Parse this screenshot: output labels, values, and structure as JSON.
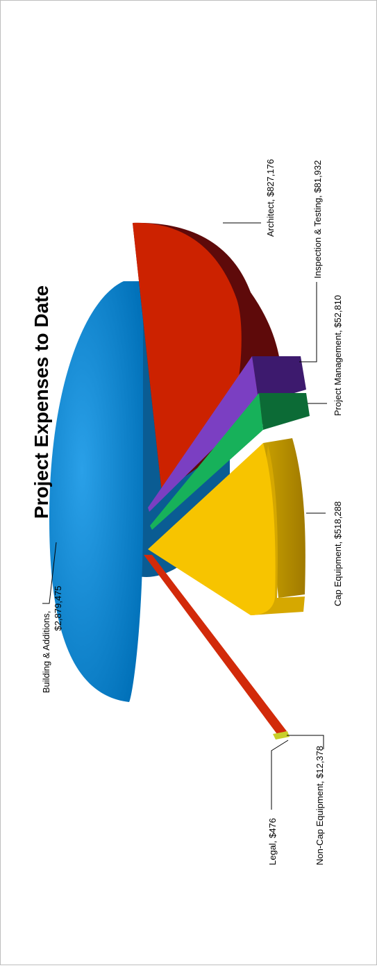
{
  "chart_data": {
    "type": "pie",
    "title": "Project Expenses to Date",
    "labels": [
      "Building & Additions, $2,879,475",
      "Architect, $827,176",
      "Inspection & Testing, $81,932",
      "Project Management, $52,810",
      "Cap Equipment, $518,288",
      "Non-Cap Equipment, $12,378",
      "Legal, $476"
    ],
    "label_lines": [
      [
        "Building & Additions,",
        "$2,879,475"
      ],
      [
        "Architect, $827,176"
      ],
      [
        "Inspection & Testing, $81,932"
      ],
      [
        "Project Management, $52,810"
      ],
      [
        "Cap Equipment, $518,288"
      ],
      [
        "Non-Cap Equipment, $12,378"
      ],
      [
        "Legal, $476"
      ]
    ],
    "values": [
      2879475,
      827176,
      81932,
      52810,
      518288,
      12378,
      476
    ],
    "colors": [
      "#0a84d0",
      "#cc2200",
      "#7b3fc2",
      "#17b15a",
      "#f7c400",
      "#d22a0a",
      "#c8cf2a"
    ],
    "style": "3D exploded pie",
    "legend": "none"
  }
}
